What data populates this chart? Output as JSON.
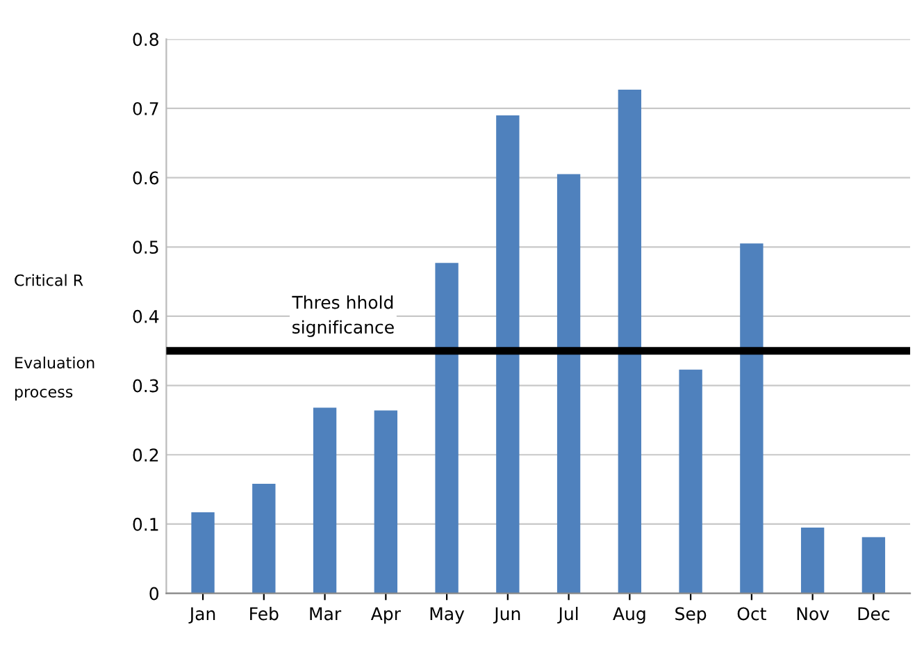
{
  "chart_data": {
    "type": "bar",
    "categories": [
      "Jan",
      "Feb",
      "Mar",
      "Apr",
      "May",
      "Jun",
      "Jul",
      "Aug",
      "Sep",
      "Oct",
      "Nov",
      "Dec"
    ],
    "values": [
      0.117,
      0.158,
      0.268,
      0.264,
      0.477,
      0.69,
      0.605,
      0.727,
      0.323,
      0.505,
      0.095,
      0.081
    ],
    "color": "#4f81bd",
    "ylim": [
      0,
      0.8
    ],
    "yticks": [
      0,
      0.1,
      0.2,
      0.3,
      0.4,
      0.5,
      0.6,
      0.7,
      0.8
    ],
    "grid": "y",
    "ref_lines": [
      {
        "axis": "y",
        "value": 0.35,
        "label": "Thres hhold\nsignificance",
        "color": "#000000"
      }
    ],
    "annotations": [
      "Critical R",
      "Evaluation\nprocess"
    ]
  }
}
